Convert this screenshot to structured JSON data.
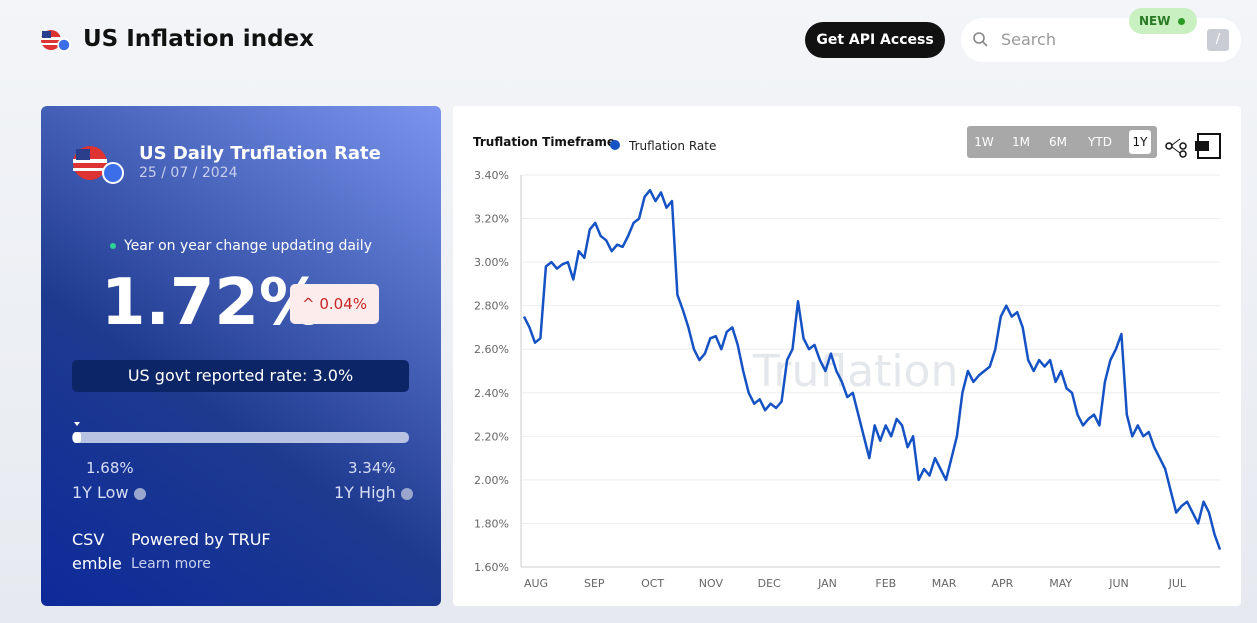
{
  "header": {
    "title": "US Inflation index",
    "api_button": "Get API Access",
    "search_placeholder": "Search",
    "new_badge": "NEW",
    "shortcut": "/"
  },
  "card": {
    "title": "US Daily Truflation Rate",
    "date": "25 / 07 / 2024",
    "status": "Year on year change updating daily",
    "rate": "1.72%",
    "change": "0.04%",
    "govt": "US govt reported rate: 3.0%",
    "low_value": "1.68%",
    "low_label": "1Y Low",
    "high_value": "3.34%",
    "high_label": "1Y High",
    "csv_alt": "CSV emblem",
    "powered": "Powered by TRUF",
    "learn": "Learn more"
  },
  "chart_data": {
    "type": "line",
    "title": "Truflation Timeframe",
    "watermark": "Truflation",
    "timeframes": [
      "1W",
      "1M",
      "6M",
      "YTD",
      "1Y"
    ],
    "active_timeframe": 4,
    "xticks": [
      "AUG",
      "SEP",
      "OCT",
      "NOV",
      "DEC",
      "JAN",
      "FEB",
      "MAR",
      "APR",
      "MAY",
      "JUN",
      "JUL"
    ],
    "ylim": [
      1.6,
      3.4
    ],
    "yticks": [
      {
        "value": 1.6,
        "label": "1.60%"
      },
      {
        "value": 1.8,
        "label": "1.80%"
      },
      {
        "value": 2.0,
        "label": "2.00%"
      },
      {
        "value": 2.2,
        "label": "2.20%"
      },
      {
        "value": 2.4,
        "label": "2.40%"
      },
      {
        "value": 2.6,
        "label": "2.60%"
      },
      {
        "value": 2.8,
        "label": "2.80%"
      },
      {
        "value": 3.0,
        "label": "3.00%"
      },
      {
        "value": 3.2,
        "label": "3.20%"
      },
      {
        "value": 3.4,
        "label": "3.40%"
      }
    ],
    "grid": true,
    "series": [
      {
        "name": "Truflation Rate",
        "color": "#1552c4",
        "values": [
          2.75,
          2.7,
          2.63,
          2.65,
          2.98,
          3.0,
          2.97,
          2.99,
          3.0,
          2.92,
          3.05,
          3.02,
          3.15,
          3.18,
          3.12,
          3.1,
          3.05,
          3.08,
          3.07,
          3.12,
          3.18,
          3.2,
          3.3,
          3.33,
          3.28,
          3.32,
          3.25,
          3.28,
          2.85,
          2.78,
          2.7,
          2.6,
          2.55,
          2.58,
          2.65,
          2.66,
          2.6,
          2.68,
          2.7,
          2.62,
          2.5,
          2.4,
          2.35,
          2.37,
          2.32,
          2.35,
          2.33,
          2.36,
          2.55,
          2.6,
          2.82,
          2.65,
          2.6,
          2.62,
          2.55,
          2.5,
          2.58,
          2.5,
          2.45,
          2.38,
          2.4,
          2.3,
          2.2,
          2.1,
          2.25,
          2.18,
          2.25,
          2.2,
          2.28,
          2.25,
          2.15,
          2.2,
          2.0,
          2.05,
          2.02,
          2.1,
          2.05,
          2.0,
          2.1,
          2.2,
          2.4,
          2.5,
          2.45,
          2.48,
          2.5,
          2.52,
          2.6,
          2.75,
          2.8,
          2.75,
          2.77,
          2.7,
          2.55,
          2.5,
          2.55,
          2.52,
          2.55,
          2.45,
          2.5,
          2.42,
          2.4,
          2.3,
          2.25,
          2.28,
          2.3,
          2.25,
          2.45,
          2.55,
          2.6,
          2.67,
          2.3,
          2.2,
          2.25,
          2.2,
          2.22,
          2.15,
          2.1,
          2.05,
          1.95,
          1.85,
          1.88,
          1.9,
          1.85,
          1.8,
          1.9,
          1.85,
          1.75,
          1.68
        ]
      }
    ]
  }
}
